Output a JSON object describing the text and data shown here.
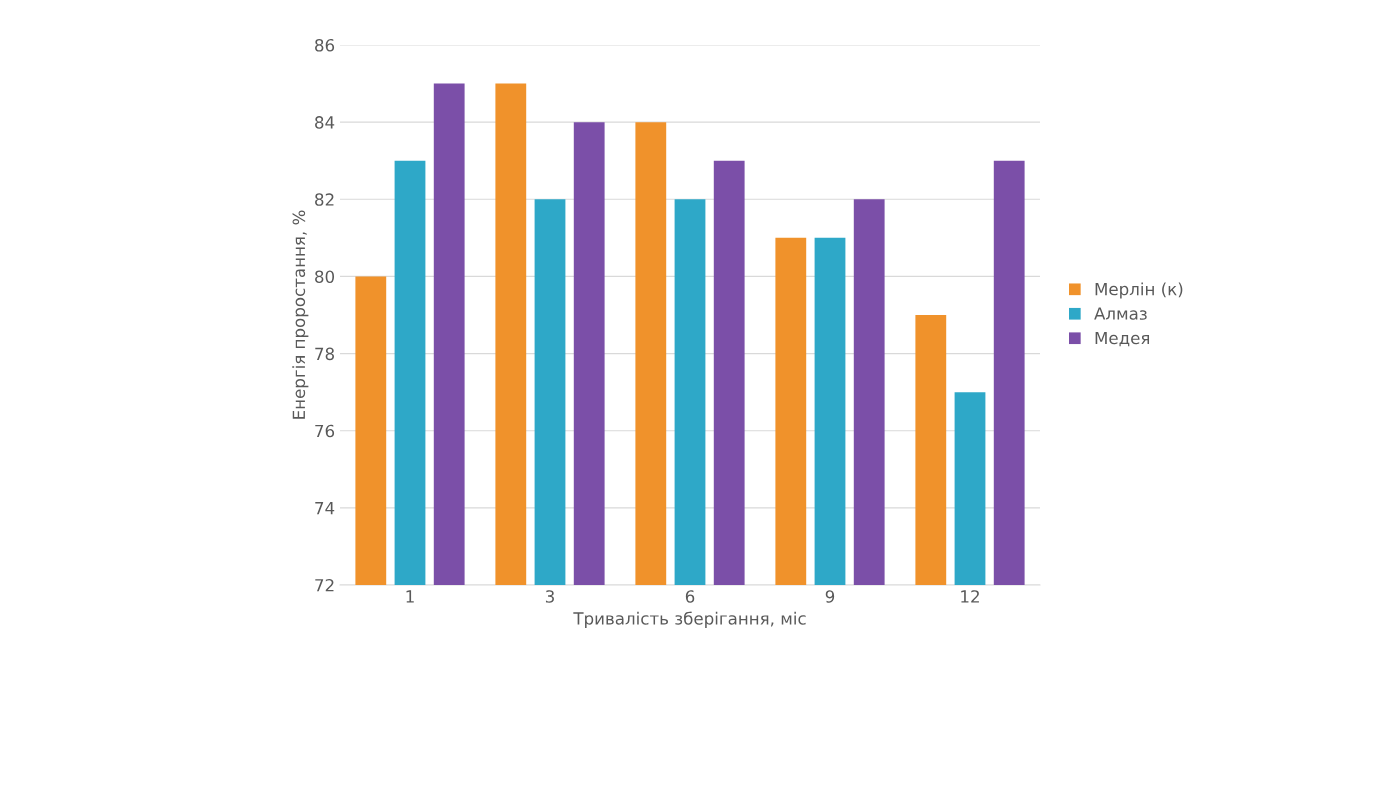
{
  "chart_data": {
    "type": "bar",
    "xlabel": "Тривалість зберігання, міс",
    "ylabel": "Енергія проростання, %",
    "categories": [
      "1",
      "3",
      "6",
      "9",
      "12"
    ],
    "series": [
      {
        "name": "Мерлін (к)",
        "color": "#f0922b",
        "values": [
          80,
          85,
          84,
          81,
          79
        ]
      },
      {
        "name": "Алмаз",
        "color": "#2ea8c8",
        "values": [
          83,
          82,
          82,
          81,
          77
        ]
      },
      {
        "name": "Медея",
        "color": "#7b4fa8",
        "values": [
          85,
          84,
          83,
          82,
          83
        ]
      }
    ],
    "ylim": [
      72,
      86
    ],
    "yticks": [
      72,
      74,
      76,
      78,
      80,
      82,
      84,
      86
    ],
    "grid": "y",
    "legend": "right"
  }
}
